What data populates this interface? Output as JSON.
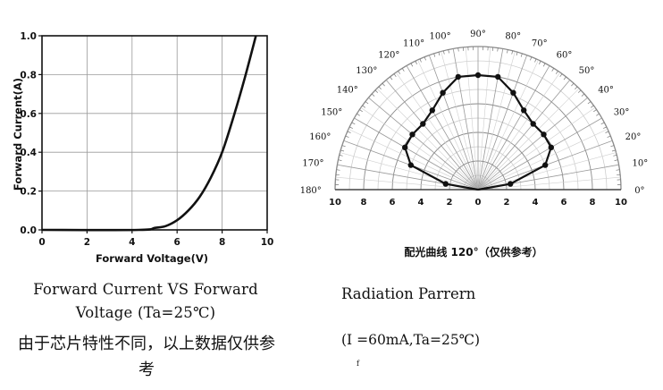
{
  "chart_data": [
    {
      "type": "line",
      "title": "",
      "xlabel": "Forward Voltage(V)",
      "ylabel": "Forward Current(A)",
      "xlim": [
        0,
        10
      ],
      "ylim": [
        0,
        1.0
      ],
      "x_ticks": [
        "0",
        "2",
        "4",
        "6",
        "8",
        "10"
      ],
      "y_ticks": [
        "0.0",
        "0.2",
        "0.4",
        "0.6",
        "0.8",
        "1.0"
      ],
      "grid": true,
      "legend": "none",
      "series": [
        {
          "name": "Forward Current",
          "x": [
            0,
            4.3,
            5.0,
            5.5,
            6.0,
            6.5,
            7.0,
            7.5,
            8.0,
            8.5,
            9.0,
            9.5
          ],
          "y": [
            0,
            0.0,
            0.01,
            0.02,
            0.05,
            0.1,
            0.17,
            0.27,
            0.4,
            0.58,
            0.78,
            1.0
          ]
        }
      ]
    },
    {
      "type": "polar",
      "title": "配光曲线 120°（仅供参考）",
      "radial_labels": [
        "10",
        "8",
        "6",
        "4",
        "2",
        "0",
        "2",
        "4",
        "6",
        "8",
        "10"
      ],
      "radial_range": [
        0,
        10
      ],
      "angle_labels": [
        "0°",
        "10°",
        "20°",
        "30°",
        "40°",
        "50°",
        "60°",
        "70°",
        "80°",
        "90°",
        "100°",
        "110°",
        "120°",
        "130°",
        "140°",
        "150°",
        "160°",
        "170°",
        "180°"
      ],
      "angular_range_deg": [
        0,
        180
      ],
      "series": [
        {
          "name": "Radiation pattern",
          "angle_deg": [
            0,
            10,
            20,
            30,
            40,
            50,
            60,
            70,
            80,
            90,
            100,
            110,
            120,
            130,
            140,
            150,
            160,
            170,
            180
          ],
          "r": [
            0,
            2.3,
            5.0,
            5.9,
            6.0,
            6.0,
            6.4,
            7.2,
            8.0,
            8.0,
            8.0,
            7.2,
            6.4,
            6.0,
            6.0,
            5.9,
            5.0,
            2.3,
            0
          ]
        }
      ]
    }
  ],
  "captions": {
    "left_title": "Forward Current VS Forward Voltage (Ta=25℃)",
    "left_note": "由于芯片特性不同，以上数据仅供参考",
    "right_title": "Radiation Parrern",
    "right_conditions": "(I =60mA,Ta=25℃)",
    "right_mark": "f"
  }
}
